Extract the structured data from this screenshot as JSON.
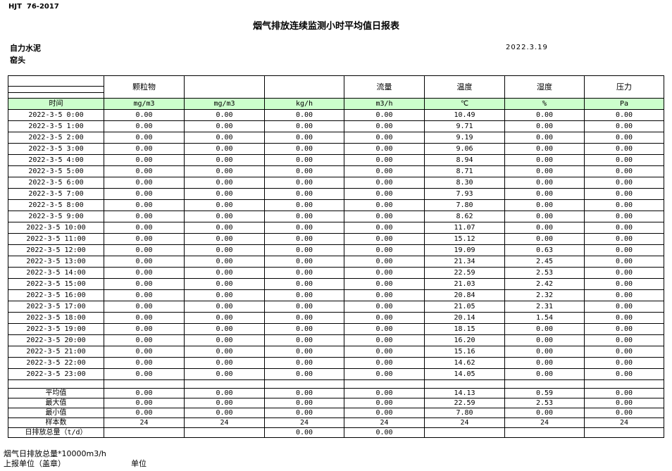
{
  "header": {
    "code": "HJT  76-2017",
    "title": "烟气排放连续监测小时平均值日报表",
    "company": "自力水泥",
    "date": "2022.3.19",
    "location": "窑头"
  },
  "table": {
    "header": [
      null,
      "颗粒物",
      null,
      null,
      "流量",
      "温度",
      "湿度",
      "压力"
    ],
    "units": [
      "时间",
      "mg/m3",
      "mg/m3",
      "kg/h",
      "m3/h",
      "℃",
      "%",
      "Pa"
    ],
    "rows": [
      [
        "2022-3-5 0:00",
        "0.00",
        "0.00",
        "0.00",
        "0.00",
        "10.49",
        "0.00",
        "0.00"
      ],
      [
        "2022-3-5 1:00",
        "0.00",
        "0.00",
        "0.00",
        "0.00",
        "9.71",
        "0.00",
        "0.00"
      ],
      [
        "2022-3-5 2:00",
        "0.00",
        "0.00",
        "0.00",
        "0.00",
        "9.19",
        "0.00",
        "0.00"
      ],
      [
        "2022-3-5 3:00",
        "0.00",
        "0.00",
        "0.00",
        "0.00",
        "9.06",
        "0.00",
        "0.00"
      ],
      [
        "2022-3-5 4:00",
        "0.00",
        "0.00",
        "0.00",
        "0.00",
        "8.94",
        "0.00",
        "0.00"
      ],
      [
        "2022-3-5 5:00",
        "0.00",
        "0.00",
        "0.00",
        "0.00",
        "8.71",
        "0.00",
        "0.00"
      ],
      [
        "2022-3-5 6:00",
        "0.00",
        "0.00",
        "0.00",
        "0.00",
        "8.30",
        "0.00",
        "0.00"
      ],
      [
        "2022-3-5 7:00",
        "0.00",
        "0.00",
        "0.00",
        "0.00",
        "7.93",
        "0.00",
        "0.00"
      ],
      [
        "2022-3-5 8:00",
        "0.00",
        "0.00",
        "0.00",
        "0.00",
        "7.80",
        "0.00",
        "0.00"
      ],
      [
        "2022-3-5 9:00",
        "0.00",
        "0.00",
        "0.00",
        "0.00",
        "8.62",
        "0.00",
        "0.00"
      ],
      [
        "2022-3-5 10:00",
        "0.00",
        "0.00",
        "0.00",
        "0.00",
        "11.07",
        "0.00",
        "0.00"
      ],
      [
        "2022-3-5 11:00",
        "0.00",
        "0.00",
        "0.00",
        "0.00",
        "15.12",
        "0.00",
        "0.00"
      ],
      [
        "2022-3-5 12:00",
        "0.00",
        "0.00",
        "0.00",
        "0.00",
        "19.09",
        "0.63",
        "0.00"
      ],
      [
        "2022-3-5 13:00",
        "0.00",
        "0.00",
        "0.00",
        "0.00",
        "21.34",
        "2.45",
        "0.00"
      ],
      [
        "2022-3-5 14:00",
        "0.00",
        "0.00",
        "0.00",
        "0.00",
        "22.59",
        "2.53",
        "0.00"
      ],
      [
        "2022-3-5 15:00",
        "0.00",
        "0.00",
        "0.00",
        "0.00",
        "21.03",
        "2.42",
        "0.00"
      ],
      [
        "2022-3-5 16:00",
        "0.00",
        "0.00",
        "0.00",
        "0.00",
        "20.84",
        "2.32",
        "0.00"
      ],
      [
        "2022-3-5 17:00",
        "0.00",
        "0.00",
        "0.00",
        "0.00",
        "21.05",
        "2.31",
        "0.00"
      ],
      [
        "2022-3-5 18:00",
        "0.00",
        "0.00",
        "0.00",
        "0.00",
        "20.14",
        "1.54",
        "0.00"
      ],
      [
        "2022-3-5 19:00",
        "0.00",
        "0.00",
        "0.00",
        "0.00",
        "18.15",
        "0.00",
        "0.00"
      ],
      [
        "2022-3-5 20:00",
        "0.00",
        "0.00",
        "0.00",
        "0.00",
        "16.20",
        "0.00",
        "0.00"
      ],
      [
        "2022-3-5 21:00",
        "0.00",
        "0.00",
        "0.00",
        "0.00",
        "15.16",
        "0.00",
        "0.00"
      ],
      [
        "2022-3-5 22:00",
        "0.00",
        "0.00",
        "0.00",
        "0.00",
        "14.62",
        "0.00",
        "0.00"
      ],
      [
        "2022-3-5 23:00",
        "0.00",
        "0.00",
        "0.00",
        "0.00",
        "14.05",
        "0.00",
        "0.00"
      ]
    ],
    "summary": [
      [
        "平均值",
        "0.00",
        "0.00",
        "0.00",
        "0.00",
        "14.13",
        "0.59",
        "0.00"
      ],
      [
        "最大值",
        "0.00",
        "0.00",
        "0.00",
        "0.00",
        "22.59",
        "2.53",
        "0.00"
      ],
      [
        "最小值",
        "0.00",
        "0.00",
        "0.00",
        "0.00",
        "7.80",
        "0.00",
        "0.00"
      ],
      [
        "样本数",
        "24",
        "24",
        "24",
        "24",
        "24",
        "24",
        "24"
      ],
      [
        "日排放总量（t/d）",
        null,
        null,
        "0.00",
        "0.00",
        null,
        null,
        null
      ]
    ]
  },
  "footer": {
    "emission_note": "烟气日排放总量*10000m3/h",
    "reporting_unit": "上报单位（盖章）",
    "unit": "单位"
  }
}
